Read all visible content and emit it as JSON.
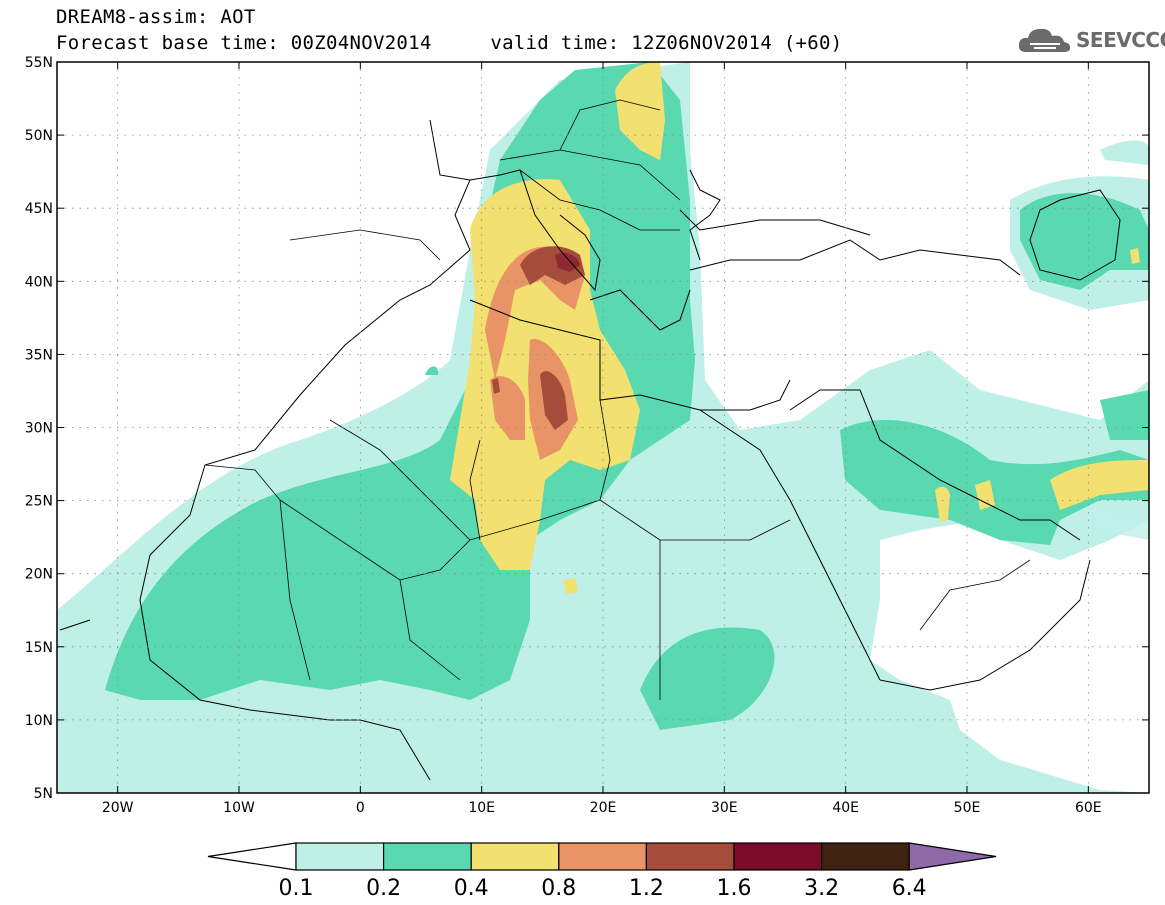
{
  "header": {
    "title_line1": "DREAM8-assim: AOT",
    "title_line2": "Forecast base time: 00Z04NOV2014     valid time: 12Z06NOV2014 (+60)",
    "logo_text": "SEEVCCC"
  },
  "map": {
    "projection": "lat-lon",
    "lon_range": [
      -25,
      65
    ],
    "lat_range": [
      5,
      55
    ],
    "lon_ticks": [
      {
        "value": -20,
        "label": "20W"
      },
      {
        "value": -10,
        "label": "10W"
      },
      {
        "value": 0,
        "label": "0"
      },
      {
        "value": 10,
        "label": "10E"
      },
      {
        "value": 20,
        "label": "20E"
      },
      {
        "value": 30,
        "label": "30E"
      },
      {
        "value": 40,
        "label": "40E"
      },
      {
        "value": 50,
        "label": "50E"
      },
      {
        "value": 60,
        "label": "60E"
      }
    ],
    "lat_ticks": [
      {
        "value": 55,
        "label": "55N"
      },
      {
        "value": 50,
        "label": "50N"
      },
      {
        "value": 45,
        "label": "45N"
      },
      {
        "value": 40,
        "label": "40N"
      },
      {
        "value": 35,
        "label": "35N"
      },
      {
        "value": 30,
        "label": "30N"
      },
      {
        "value": 25,
        "label": "25N"
      },
      {
        "value": 20,
        "label": "20N"
      },
      {
        "value": 15,
        "label": "15N"
      },
      {
        "value": 10,
        "label": "10N"
      },
      {
        "value": 5,
        "label": "5N"
      }
    ],
    "gridlines": "dotted"
  },
  "colorbar": {
    "labels": [
      "0.1",
      "0.2",
      "0.4",
      "0.8",
      "1.2",
      "1.6",
      "3.2",
      "6.4"
    ],
    "colors": {
      "under": "#ffffff",
      "levels": [
        "#bff0e8",
        "#5ad9b0",
        "#f2e070",
        "#e99466",
        "#a64c3a",
        "#7a0c2a",
        "#3e2212"
      ],
      "over": "#8e6aa8"
    }
  }
}
